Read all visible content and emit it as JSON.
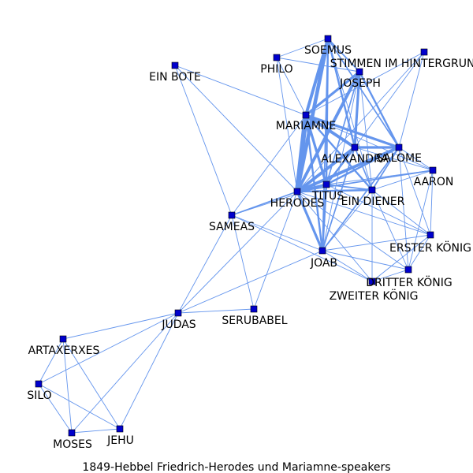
{
  "title": "1849-Hebbel Friedrich-Herodes und Mariamne-speakers",
  "colors": {
    "edge": "#6495ED",
    "node": "#0000CD",
    "node_border": "#000000",
    "background": "#ffffff"
  },
  "nodes": [
    {
      "id": "SOEMUS",
      "label": "SOEMUS"
    },
    {
      "id": "PHILO",
      "label": "PHILO"
    },
    {
      "id": "JOSEPH",
      "label": "JOSEPH"
    },
    {
      "id": "STIMMEN",
      "label": "STIMMEN IM HINTERGRUND"
    },
    {
      "id": "EIN BOTE",
      "label": "EIN BOTE"
    },
    {
      "id": "MARIAMNE",
      "label": "MARIAMNE"
    },
    {
      "id": "ALEXANDRA",
      "label": "ALEXANDRA"
    },
    {
      "id": "SALOME",
      "label": "SALOME"
    },
    {
      "id": "AARON",
      "label": "AARON"
    },
    {
      "id": "TITUS",
      "label": "TITUS"
    },
    {
      "id": "EIN DIENER",
      "label": "EIN DIENER"
    },
    {
      "id": "HERODES",
      "label": "HERODES"
    },
    {
      "id": "SAMEAS",
      "label": "SAMEAS"
    },
    {
      "id": "ERSTER",
      "label": "ERSTER KÖNIG"
    },
    {
      "id": "JOAB",
      "label": "JOAB"
    },
    {
      "id": "DRITTER",
      "label": "DRITTER KÖNIG"
    },
    {
      "id": "ZWEITER",
      "label": "ZWEITER KÖNIG"
    },
    {
      "id": "JUDAS",
      "label": "JUDAS"
    },
    {
      "id": "SERUBABEL",
      "label": "SERUBABEL"
    },
    {
      "id": "ARTAXERXES",
      "label": "ARTAXERXES"
    },
    {
      "id": "SILO",
      "label": "SILO"
    },
    {
      "id": "MOSES",
      "label": "MOSES"
    },
    {
      "id": "JEHU",
      "label": "JEHU"
    }
  ],
  "edges": [
    [
      "HERODES",
      "MARIAMNE",
      8
    ],
    [
      "HERODES",
      "SOEMUS",
      6
    ],
    [
      "HERODES",
      "JOSEPH",
      5
    ],
    [
      "HERODES",
      "ALEXANDRA",
      5
    ],
    [
      "HERODES",
      "SALOME",
      5
    ],
    [
      "HERODES",
      "TITUS",
      4
    ],
    [
      "HERODES",
      "JOAB",
      4
    ],
    [
      "HERODES",
      "EIN DIENER",
      3
    ],
    [
      "HERODES",
      "PHILO",
      1
    ],
    [
      "HERODES",
      "STIMMEN",
      1
    ],
    [
      "HERODES",
      "AARON",
      2
    ],
    [
      "HERODES",
      "SAMEAS",
      2
    ],
    [
      "HERODES",
      "EIN BOTE",
      1
    ],
    [
      "HERODES",
      "JUDAS",
      1
    ],
    [
      "HERODES",
      "SERUBABEL",
      1
    ],
    [
      "HERODES",
      "ERSTER",
      1
    ],
    [
      "HERODES",
      "DRITTER",
      1
    ],
    [
      "HERODES",
      "ZWEITER",
      1
    ],
    [
      "MARIAMNE",
      "SOEMUS",
      5
    ],
    [
      "MARIAMNE",
      "JOSEPH",
      4
    ],
    [
      "MARIAMNE",
      "ALEXANDRA",
      5
    ],
    [
      "MARIAMNE",
      "SALOME",
      4
    ],
    [
      "MARIAMNE",
      "TITUS",
      4
    ],
    [
      "MARIAMNE",
      "EIN DIENER",
      3
    ],
    [
      "MARIAMNE",
      "JOAB",
      3
    ],
    [
      "MARIAMNE",
      "PHILO",
      1
    ],
    [
      "MARIAMNE",
      "STIMMEN",
      1
    ],
    [
      "MARIAMNE",
      "AARON",
      1
    ],
    [
      "MARIAMNE",
      "EIN BOTE",
      1
    ],
    [
      "MARIAMNE",
      "SAMEAS",
      1
    ],
    [
      "SOEMUS",
      "ALEXANDRA",
      3
    ],
    [
      "SOEMUS",
      "SALOME",
      2
    ],
    [
      "SOEMUS",
      "JOSEPH",
      2
    ],
    [
      "SOEMUS",
      "TITUS",
      3
    ],
    [
      "SOEMUS",
      "PHILO",
      1
    ],
    [
      "SOEMUS",
      "EIN DIENER",
      1
    ],
    [
      "SOEMUS",
      "JOAB",
      2
    ],
    [
      "JOSEPH",
      "ALEXANDRA",
      4
    ],
    [
      "JOSEPH",
      "SALOME",
      3
    ],
    [
      "JOSEPH",
      "TITUS",
      2
    ],
    [
      "JOSEPH",
      "EIN DIENER",
      1
    ],
    [
      "JOSEPH",
      "PHILO",
      1
    ],
    [
      "JOSEPH",
      "JOAB",
      1
    ],
    [
      "ALEXANDRA",
      "SALOME",
      4
    ],
    [
      "ALEXANDRA",
      "TITUS",
      3
    ],
    [
      "ALEXANDRA",
      "EIN DIENER",
      2
    ],
    [
      "ALEXANDRA",
      "AARON",
      1
    ],
    [
      "ALEXANDRA",
      "JOAB",
      2
    ],
    [
      "ALEXANDRA",
      "STIMMEN",
      1
    ],
    [
      "SALOME",
      "TITUS",
      3
    ],
    [
      "SALOME",
      "EIN DIENER",
      2
    ],
    [
      "SALOME",
      "AARON",
      1
    ],
    [
      "SALOME",
      "JOAB",
      2
    ],
    [
      "SALOME",
      "STIMMEN",
      1
    ],
    [
      "SALOME",
      "ERSTER",
      1
    ],
    [
      "SALOME",
      "DRITTER",
      1
    ],
    [
      "TITUS",
      "EIN DIENER",
      2
    ],
    [
      "TITUS",
      "JOAB",
      3
    ],
    [
      "TITUS",
      "AARON",
      1
    ],
    [
      "TITUS",
      "SAMEAS",
      1
    ],
    [
      "TITUS",
      "ERSTER",
      1
    ],
    [
      "EIN DIENER",
      "JOAB",
      1
    ],
    [
      "EIN DIENER",
      "AARON",
      1
    ],
    [
      "EIN DIENER",
      "ERSTER",
      1
    ],
    [
      "EIN DIENER",
      "DRITTER",
      1
    ],
    [
      "EIN DIENER",
      "ZWEITER",
      1
    ],
    [
      "JOAB",
      "ERSTER",
      1
    ],
    [
      "JOAB",
      "DRITTER",
      1
    ],
    [
      "JOAB",
      "ZWEITER",
      1
    ],
    [
      "JOAB",
      "JUDAS",
      1
    ],
    [
      "JOAB",
      "SAMEAS",
      1
    ],
    [
      "SAMEAS",
      "JUDAS",
      1
    ],
    [
      "SAMEAS",
      "SERUBABEL",
      1
    ],
    [
      "SAMEAS",
      "ZWEITER",
      1
    ],
    [
      "SAMEAS",
      "EIN BOTE",
      1
    ],
    [
      "ERSTER",
      "DRITTER",
      1
    ],
    [
      "ERSTER",
      "ZWEITER",
      1
    ],
    [
      "DRITTER",
      "ZWEITER",
      1
    ],
    [
      "AARON",
      "DRITTER",
      1
    ],
    [
      "AARON",
      "ERSTER",
      1
    ],
    [
      "JUDAS",
      "SERUBABEL",
      1
    ],
    [
      "JUDAS",
      "ARTAXERXES",
      1
    ],
    [
      "JUDAS",
      "SILO",
      1
    ],
    [
      "JUDAS",
      "MOSES",
      1
    ],
    [
      "JUDAS",
      "JEHU",
      1
    ],
    [
      "ARTAXERXES",
      "SILO",
      1
    ],
    [
      "ARTAXERXES",
      "MOSES",
      1
    ],
    [
      "ARTAXERXES",
      "JEHU",
      1
    ],
    [
      "SILO",
      "MOSES",
      1
    ],
    [
      "SILO",
      "JEHU",
      1
    ],
    [
      "MOSES",
      "JEHU",
      1
    ]
  ]
}
